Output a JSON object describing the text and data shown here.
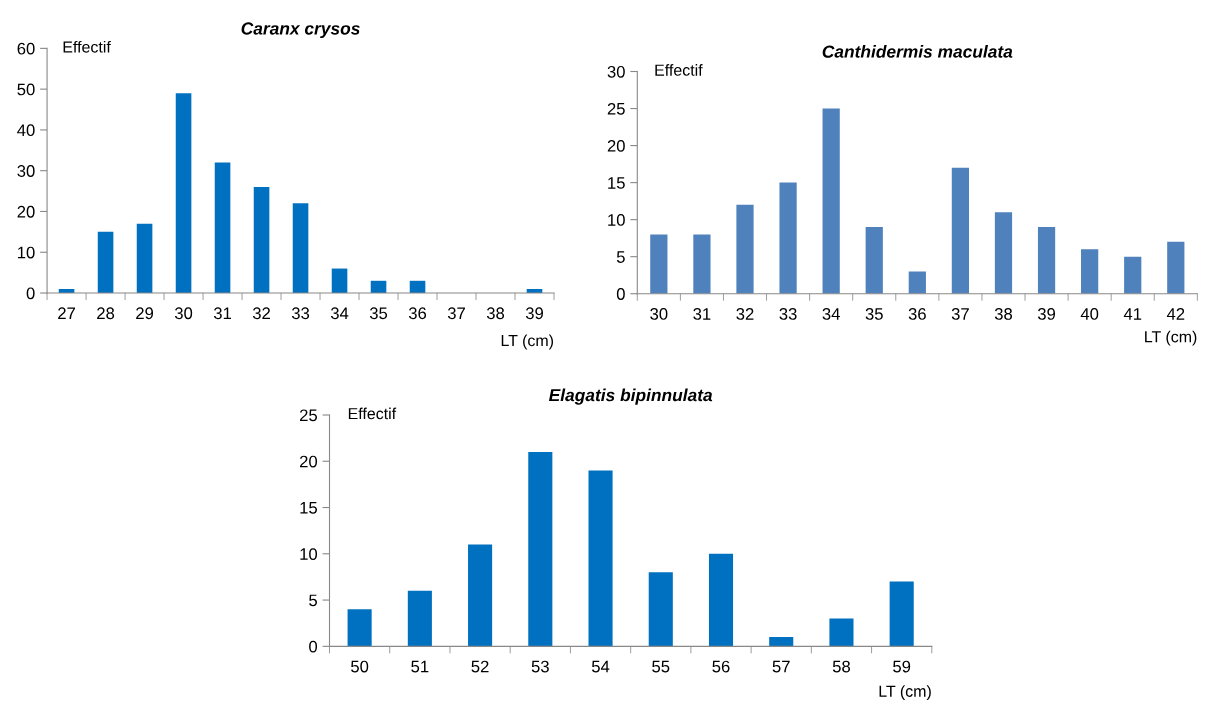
{
  "chart_data": [
    {
      "type": "bar",
      "title": "Caranx crysos",
      "ylabel": "Effectif",
      "xlabel": "LT (cm)",
      "categories": [
        "27",
        "28",
        "29",
        "30",
        "31",
        "32",
        "33",
        "34",
        "35",
        "36",
        "37",
        "38",
        "39"
      ],
      "values": [
        1,
        15,
        17,
        49,
        32,
        26,
        22,
        6,
        3,
        3,
        0,
        0,
        1
      ],
      "color": "#0070c0",
      "ylim": [
        0,
        60
      ],
      "yticks": [
        0,
        10,
        20,
        30,
        40,
        50,
        60
      ],
      "grid": false,
      "legend": false
    },
    {
      "type": "bar",
      "title": "Canthidermis maculata",
      "ylabel": "Effectif",
      "xlabel": "LT (cm)",
      "categories": [
        "30",
        "31",
        "32",
        "33",
        "34",
        "35",
        "36",
        "37",
        "38",
        "39",
        "40",
        "41",
        "42"
      ],
      "values": [
        8,
        8,
        12,
        15,
        25,
        9,
        3,
        17,
        11,
        9,
        6,
        5,
        7
      ],
      "color": "#4f81bd",
      "ylim": [
        0,
        30
      ],
      "yticks": [
        0,
        5,
        10,
        15,
        20,
        25,
        30
      ],
      "grid": false,
      "legend": false
    },
    {
      "type": "bar",
      "title": "Elagatis bipinnulata",
      "ylabel": "Effectif",
      "xlabel": "LT (cm)",
      "categories": [
        "50",
        "51",
        "52",
        "53",
        "54",
        "55",
        "56",
        "57",
        "58",
        "59"
      ],
      "values": [
        4,
        6,
        11,
        21,
        19,
        8,
        10,
        1,
        3,
        7
      ],
      "color": "#0070c0",
      "ylim": [
        0,
        25
      ],
      "yticks": [
        0,
        5,
        10,
        15,
        20,
        25
      ],
      "grid": false,
      "legend": false
    }
  ]
}
